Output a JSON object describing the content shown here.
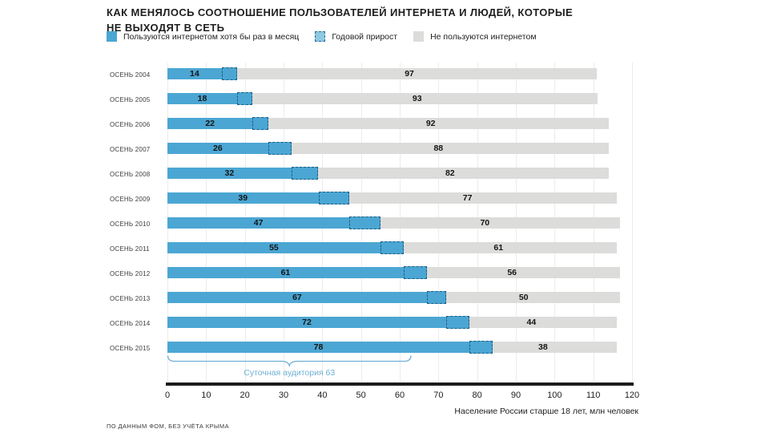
{
  "title": "КАК МЕНЯЛОСЬ СООТНОШЕНИЕ ПОЛЬЗОВАТЕЛЕЙ ИНТЕРНЕТА И ЛЮДЕЙ, КОТОРЫЕ НЕ ВЫХОДЯТ В СЕТЬ",
  "legend": [
    {
      "label": "Пользуются интернетом хотя бы раз в месяц",
      "swatch": "solid-blue"
    },
    {
      "label": "Годовой прирост",
      "swatch": "dashed-blue"
    },
    {
      "label": "Не пользуются интернетом",
      "swatch": "solid-gray"
    }
  ],
  "chart_data": {
    "type": "bar",
    "orientation": "horizontal",
    "stacked": true,
    "categories": [
      "ОСЕНЬ 2004",
      "ОСЕНЬ 2005",
      "ОСЕНЬ 2006",
      "ОСЕНЬ 2007",
      "ОСЕНЬ 2008",
      "ОСЕНЬ 2009",
      "ОСЕНЬ 2010",
      "ОСЕНЬ 2011",
      "ОСЕНЬ 2012",
      "ОСЕНЬ 2013",
      "ОСЕНЬ 2014",
      "ОСЕНЬ 2015"
    ],
    "series": [
      {
        "name": "Пользуются интернетом хотя бы раз в месяц",
        "values": [
          14,
          18,
          22,
          26,
          32,
          39,
          47,
          55,
          61,
          67,
          72,
          78
        ]
      },
      {
        "name": "Годовой прирост",
        "values": [
          4,
          4,
          4,
          6,
          7,
          8,
          8,
          6,
          6,
          5,
          6,
          6
        ]
      },
      {
        "name": "Не пользуются интернетом",
        "values": [
          97,
          93,
          92,
          88,
          82,
          77,
          70,
          61,
          56,
          50,
          44,
          38
        ]
      }
    ],
    "xlim": [
      0,
      120
    ],
    "xticks": [
      0,
      10,
      20,
      30,
      40,
      50,
      60,
      70,
      80,
      90,
      100,
      110,
      120
    ],
    "xlabel": "Население России старше 18 лет, млн человек",
    "grid": "vertical",
    "annotation": {
      "text": "Суточная аудитория 63",
      "span": [
        0,
        63
      ],
      "row": "ОСЕНЬ 2015"
    },
    "colors": {
      "users": "#4ba6d3",
      "growth_fill": "#4ba6d3",
      "growth_border": "#1e5e82",
      "growth_legend_fill": "#8ec8e4",
      "nonusers": "#dcdcdb",
      "annotation": "#6fb0d5",
      "axis": "#1c1c1c"
    }
  },
  "footer": {
    "text": "ПО ДАННЫМ ФОМ, БЕЗ УЧЁТА КРЫМА"
  }
}
